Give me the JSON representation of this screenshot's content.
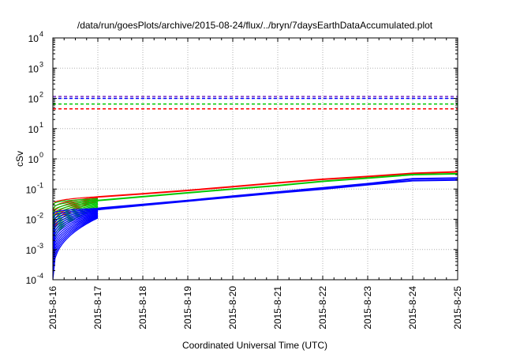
{
  "chart_data": {
    "type": "line",
    "title": "/data/run/goesPlots/archive/2015-08-24/flux/../bryn/7daysEarthDataAccumulated.plot",
    "xlabel": "Coordinated Universal Time (UTC)",
    "ylabel": "cSv",
    "yscale": "log",
    "ylim": [
      0.0001,
      10000
    ],
    "xlim": [
      "2015-8-16",
      "2015-8-25"
    ],
    "grid": true,
    "x_ticks": [
      "2015-8-16",
      "2015-8-17",
      "2015-8-18",
      "2015-8-19",
      "2015-8-20",
      "2015-8-21",
      "2015-8-22",
      "2015-8-23",
      "2015-8-24",
      "2015-8-25"
    ],
    "y_ticks": [
      {
        "base": "10",
        "exp": "-4",
        "value": 0.0001
      },
      {
        "base": "10",
        "exp": "-3",
        "value": 0.001
      },
      {
        "base": "10",
        "exp": "-2",
        "value": 0.01
      },
      {
        "base": "10",
        "exp": "-1",
        "value": 0.1
      },
      {
        "base": "10",
        "exp": "0",
        "value": 1
      },
      {
        "base": "10",
        "exp": "1",
        "value": 10
      },
      {
        "base": "10",
        "exp": "2",
        "value": 100
      },
      {
        "base": "10",
        "exp": "3",
        "value": 1000
      },
      {
        "base": "10",
        "exp": "4",
        "value": 10000
      }
    ],
    "thresholds": [
      {
        "color": "#7b2fbe",
        "value": 115
      },
      {
        "color": "#0000ff",
        "value": 100
      },
      {
        "color": "#00c800",
        "value": 65
      },
      {
        "color": "#ff0000",
        "value": 45
      }
    ],
    "series": [
      {
        "color": "#ff0000",
        "x": [
          "2015-8-17",
          "2015-8-18",
          "2015-8-19",
          "2015-8-20",
          "2015-8-21",
          "2015-8-22",
          "2015-8-23",
          "2015-8-24",
          "2015-8-25"
        ],
        "y": [
          0.055,
          0.07,
          0.09,
          0.12,
          0.16,
          0.21,
          0.26,
          0.33,
          0.37
        ]
      },
      {
        "color": "#00c800",
        "x": [
          "2015-8-17",
          "2015-8-18",
          "2015-8-19",
          "2015-8-20",
          "2015-8-21",
          "2015-8-22",
          "2015-8-23",
          "2015-8-24",
          "2015-8-25"
        ],
        "y": [
          0.042,
          0.056,
          0.075,
          0.1,
          0.13,
          0.18,
          0.23,
          0.3,
          0.32
        ]
      },
      {
        "color": "#0000ff",
        "x": [
          "2015-8-17",
          "2015-8-18",
          "2015-8-19",
          "2015-8-20",
          "2015-8-21",
          "2015-8-22",
          "2015-8-23",
          "2015-8-24",
          "2015-8-25"
        ],
        "y": [
          0.023,
          0.031,
          0.042,
          0.058,
          0.08,
          0.11,
          0.15,
          0.22,
          0.23
        ]
      },
      {
        "color": "#0000ff",
        "x": [
          "2015-8-17",
          "2015-8-18",
          "2015-8-19",
          "2015-8-20",
          "2015-8-21",
          "2015-8-22",
          "2015-8-23",
          "2015-8-24",
          "2015-8-25"
        ],
        "y": [
          0.021,
          0.029,
          0.04,
          0.055,
          0.075,
          0.1,
          0.14,
          0.19,
          0.2
        ]
      }
    ],
    "day1_bundles": [
      {
        "color": "#ff0000",
        "x_start": "2015-8-16",
        "x_end": "2015-8-17",
        "y_start_range": [
          0.002,
          0.03
        ],
        "y_end_range": [
          0.04,
          0.056
        ],
        "count": 7
      },
      {
        "color": "#00c800",
        "x_start": "2015-8-16",
        "x_end": "2015-8-17",
        "y_start_range": [
          0.0008,
          0.03
        ],
        "y_end_range": [
          0.022,
          0.048
        ],
        "count": 12
      },
      {
        "color": "#0000ff",
        "x_start": "2015-8-16",
        "x_end": "2015-8-17",
        "y_start_range": [
          0.0001,
          0.015
        ],
        "y_end_range": [
          0.011,
          0.023
        ],
        "count": 16
      }
    ]
  }
}
